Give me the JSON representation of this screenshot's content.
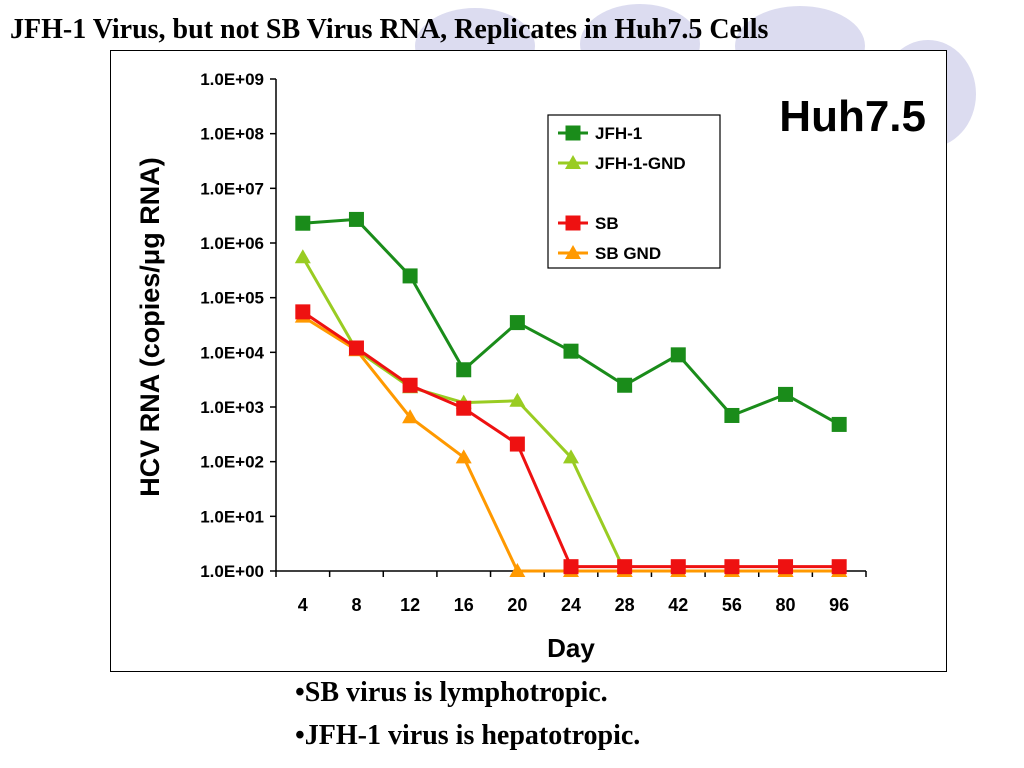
{
  "slide": {
    "title": "JFH-1 Virus, but not SB Virus RNA, Replicates in Huh7.5 Cells",
    "bullets": [
      "•SB virus is lymphotropic.",
      "•JFH-1 virus is hepatotropic."
    ],
    "colors": {
      "background": "#ffffff",
      "decor": "#dcdcf0"
    }
  },
  "chart_data": {
    "type": "line",
    "title": "",
    "annotation": "Huh7.5",
    "xlabel": "Day",
    "ylabel": "HCV RNA (copies/μg RNA)",
    "y_scale": "log",
    "ylim": [
      1,
      1000000000
    ],
    "yticks": [
      "1.0E+00",
      "1.0E+01",
      "1.0E+02",
      "1.0E+03",
      "1.0E+04",
      "1.0E+05",
      "1.0E+06",
      "1.0E+07",
      "1.0E+08",
      "1.0E+09"
    ],
    "categories": [
      "4",
      "8",
      "12",
      "16",
      "20",
      "24",
      "28",
      "42",
      "56",
      "80",
      "96"
    ],
    "grid": false,
    "legend": "top-right",
    "series": [
      {
        "name": "JFH-1",
        "color": "#1a8c1a",
        "marker": "square",
        "values": [
          2300000,
          2700000,
          250000,
          4800,
          35000,
          10500,
          2500,
          9000,
          700,
          1700,
          480
        ]
      },
      {
        "name": "JFH-1-GND",
        "color": "#99cc22",
        "marker": "triangle",
        "values": [
          550000,
          11000,
          2300,
          1200,
          1300,
          120,
          1,
          1,
          1,
          1,
          1
        ]
      },
      {
        "name": "SB",
        "color": "#ee1111",
        "marker": "square",
        "values": [
          55000,
          12000,
          2500,
          950,
          210,
          1.2,
          1.2,
          1.2,
          1.2,
          1.2,
          1.2
        ]
      },
      {
        "name": "SB GND",
        "color": "#ff9900",
        "marker": "triangle",
        "values": [
          45000,
          11000,
          650,
          120,
          1,
          1,
          1,
          1,
          1,
          1,
          1
        ]
      }
    ]
  }
}
